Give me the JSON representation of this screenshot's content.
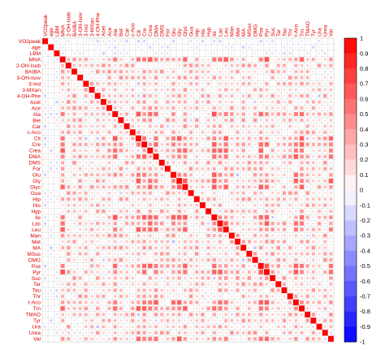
{
  "chart_data": {
    "type": "heatmap",
    "variables": [
      "VO2peak",
      "age",
      "LBM",
      "MNA",
      "2-OH-Isob",
      "BAIBA",
      "3-OH-Isov",
      "3-Ind",
      "3-MXan",
      "4-OH-Phe",
      "Acet",
      "Ace",
      "Ala",
      "Bet",
      "Car",
      "c-Aco",
      "Cit",
      "Cre",
      "Crea",
      "DMA",
      "DMS",
      "For",
      "Glu",
      "Gly",
      "Glyc",
      "Gua",
      "Hip",
      "His",
      "Hyp",
      "Ile",
      "Lac",
      "Leu",
      "Man",
      "Met",
      "MA",
      "MSuc",
      "DMG",
      "Pse",
      "Pyr",
      "Suc",
      "Tar",
      "Tau",
      "Thr",
      "t-Aco",
      "Trn",
      "TMAO",
      "Tyr",
      "Ura",
      "Urea",
      "Val"
    ],
    "colorbar": {
      "ticks": [
        1,
        0.9,
        0.8,
        0.7,
        0.6,
        0.5,
        0.4,
        0.3,
        0.2,
        0.1,
        0,
        -0.1,
        -0.2,
        -0.3,
        -0.4,
        -0.5,
        -0.6,
        -0.7,
        -0.8,
        -0.9,
        -1
      ],
      "range": [
        -1,
        1
      ],
      "low_color": "#0000ff",
      "mid_color": "#ffffff",
      "high_color": "#ff0000"
    },
    "diagonal_value": 1,
    "shape": "square",
    "encoding": "area and colour proportional to correlation",
    "layout": "full matrix, symmetric"
  },
  "colors": {
    "grid": "#cfcfcf",
    "label": "#e00000",
    "frame": "#000000"
  }
}
